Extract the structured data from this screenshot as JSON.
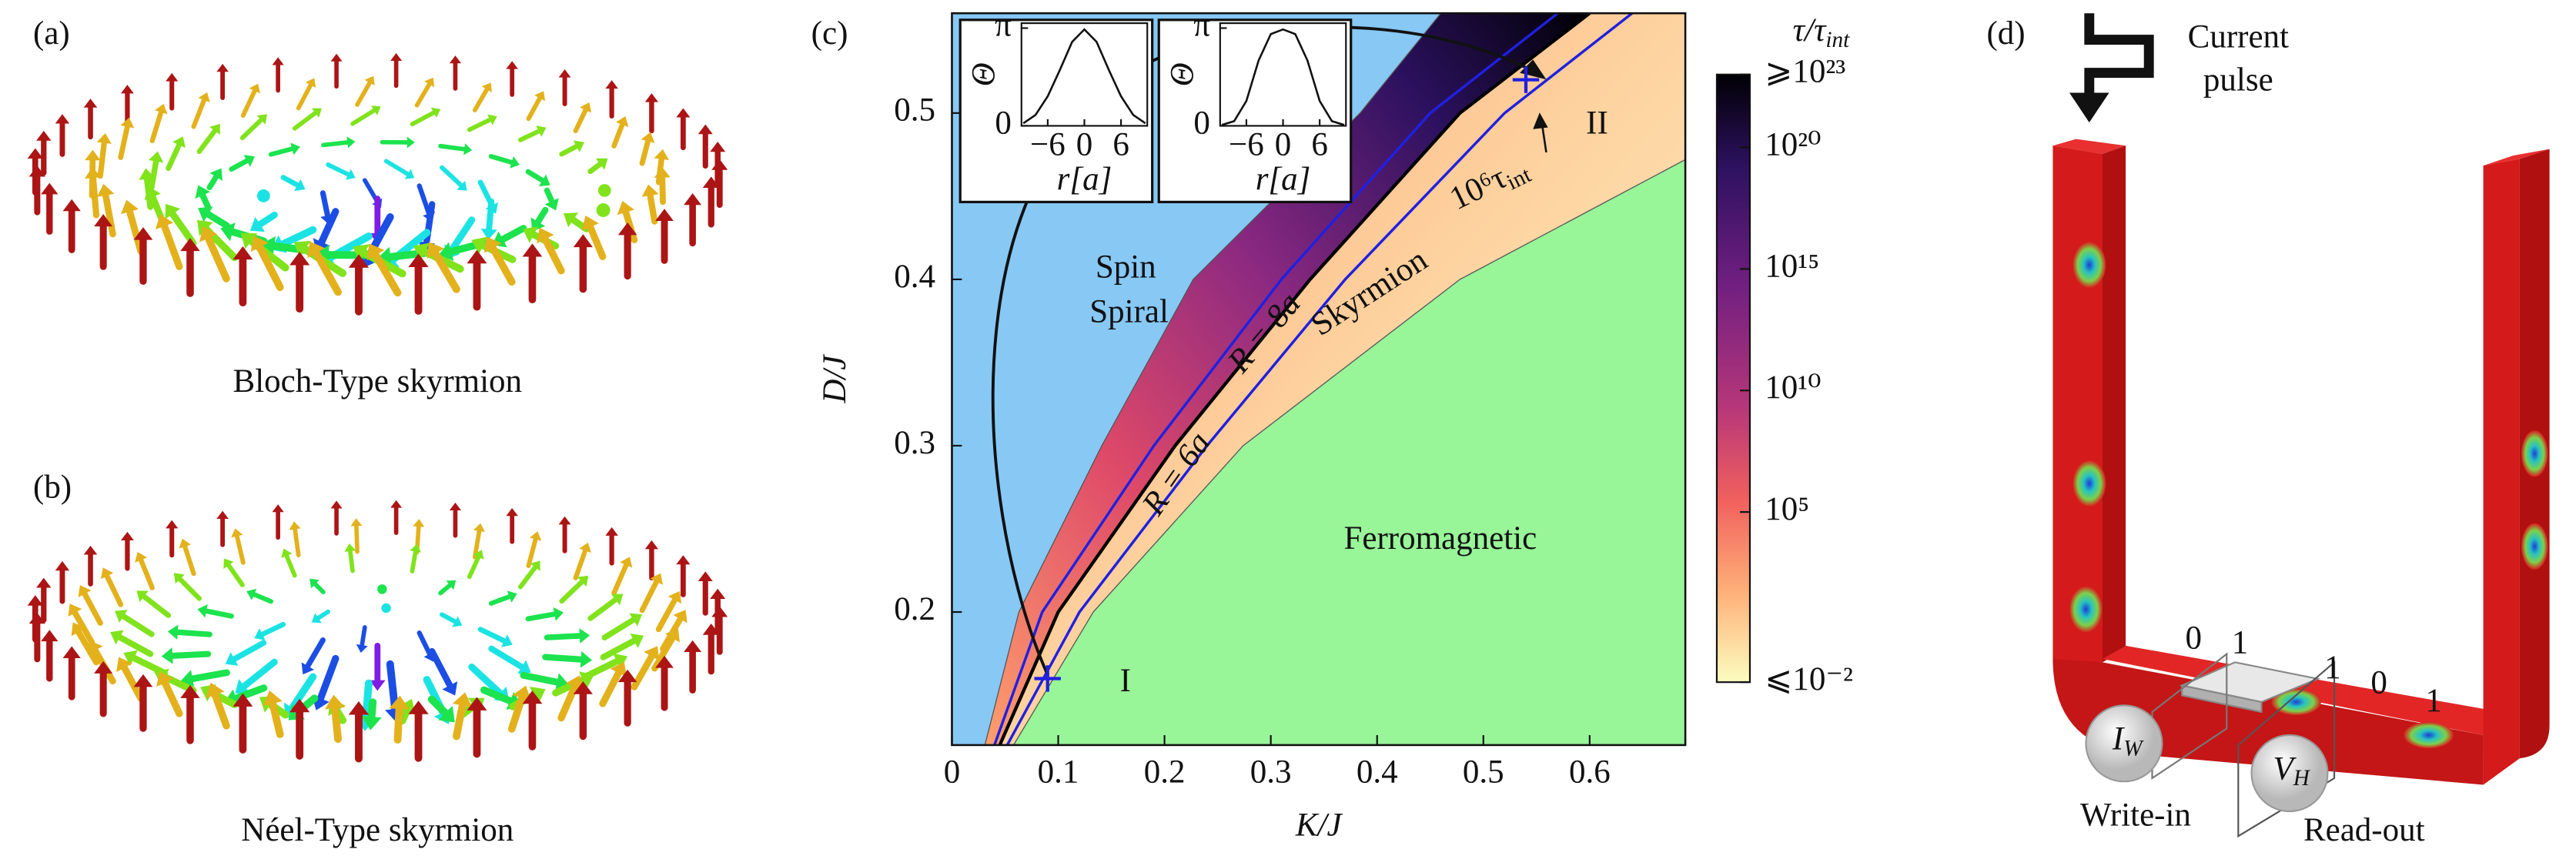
{
  "panels": {
    "a": {
      "label": "(a)",
      "caption": "Bloch-Type skyrmion"
    },
    "b": {
      "label": "(b)",
      "caption": "Néel-Type skyrmion"
    },
    "d": {
      "label": "(d)",
      "pulse_label": [
        "Current",
        "pulse"
      ],
      "write_label": "Write-in",
      "read_label": "Read-out",
      "write_symbol": {
        "main": "I",
        "sub": "W"
      },
      "read_symbol": {
        "main": "V",
        "sub": "H"
      },
      "bit_labels": [
        "0",
        "1",
        "1",
        "0",
        "1"
      ]
    }
  },
  "chart_data": {
    "type": "phase-diagram",
    "panel_label": "(c)",
    "xlabel": "K/J",
    "ylabel": "D/J",
    "xlim": [
      0,
      0.69
    ],
    "ylim": [
      0.12,
      0.56
    ],
    "xticks": [
      0,
      0.1,
      0.2,
      0.3,
      0.4,
      0.5,
      0.6
    ],
    "yticks": [
      0.2,
      0.3,
      0.4,
      0.5
    ],
    "colors": {
      "spiral": "#87c8f5",
      "ferromagnetic": "#98f598"
    },
    "region_labels": [
      "Spin",
      "Spiral",
      "Skyrmion",
      "Ferromagnetic"
    ],
    "boundaries": [
      {
        "x": [
          0.031,
          0.063,
          0.141,
          0.227,
          0.384,
          0.46
        ],
        "y": [
          0.12,
          0.2,
          0.3,
          0.4,
          0.5,
          0.56
        ]
      },
      {
        "x": [
          0.045,
          0.1,
          0.21,
          0.337,
          0.478,
          0.6
        ],
        "y": [
          0.12,
          0.2,
          0.3,
          0.4,
          0.5,
          0.56
        ]
      },
      {
        "x": [
          0.058,
          0.133,
          0.274,
          0.478,
          0.69
        ],
        "y": [
          0.12,
          0.2,
          0.3,
          0.4,
          0.472
        ]
      }
    ],
    "contours": [
      {
        "label": "R = 8a",
        "color": "#2020e0",
        "x": [
          0.04,
          0.085,
          0.19,
          0.31,
          0.45,
          0.57
        ],
        "y": [
          0.12,
          0.2,
          0.3,
          0.4,
          0.5,
          0.56
        ]
      },
      {
        "label": "R = 6a",
        "color": "#2020e0",
        "x": [
          0.052,
          0.12,
          0.24,
          0.37,
          0.52,
          0.64
        ],
        "y": [
          0.12,
          0.2,
          0.3,
          0.4,
          0.5,
          0.56
        ]
      }
    ],
    "lifetime_label": {
      "main": "10⁶τ",
      "sub": "int"
    },
    "markers": [
      {
        "label": "I",
        "x": 0.09,
        "y": 0.16
      },
      {
        "label": "II",
        "x": 0.54,
        "y": 0.52
      }
    ],
    "colorbar": {
      "label": {
        "main": "τ/τ",
        "sub": "int"
      },
      "colormap": "magma",
      "log": true,
      "lim": [
        0.01,
        1e+23
      ],
      "ticks": [
        {
          "value": 1e+23,
          "label": "⩾10²³"
        },
        {
          "value": 1e+20,
          "label": "10²⁰"
        },
        {
          "value": 1000000000000000.0,
          "label": "10¹⁵"
        },
        {
          "value": 10000000000.0,
          "label": "10¹⁰"
        },
        {
          "value": 100000.0,
          "label": "10⁵"
        },
        {
          "value": 0.01,
          "label": "⩽10⁻²"
        }
      ]
    },
    "insets": [
      {
        "ylabel": "Θ",
        "xlabel": "r[a]",
        "xlim": [
          -10.3,
          10.3
        ],
        "ylim": [
          0,
          3.3
        ],
        "xticks": [
          {
            "value": -6,
            "label": "−6"
          },
          0,
          6
        ],
        "yticks": [
          {
            "value": 0,
            "label": "0"
          },
          {
            "value": 3.14159,
            "label": "π"
          }
        ],
        "x": [
          -10,
          -8,
          -6,
          -4,
          -2,
          0,
          2,
          4,
          6,
          8,
          10
        ],
        "y": [
          0.08,
          0.35,
          0.95,
          1.8,
          2.7,
          3.1,
          2.7,
          1.8,
          0.95,
          0.35,
          0.08
        ]
      },
      {
        "ylabel": "Θ",
        "xlabel": "r[a]",
        "xlim": [
          -10.3,
          10.3
        ],
        "ylim": [
          0,
          3.3
        ],
        "xticks": [
          {
            "value": -6,
            "label": "−6"
          },
          0,
          6
        ],
        "yticks": [
          {
            "value": 0,
            "label": "0"
          },
          {
            "value": 3.14159,
            "label": "π"
          }
        ],
        "x": [
          -10,
          -8,
          -6,
          -4,
          -2,
          0,
          2,
          4,
          6,
          8,
          10
        ],
        "y": [
          0.03,
          0.15,
          0.8,
          2.1,
          2.95,
          3.1,
          2.95,
          2.1,
          0.8,
          0.15,
          0.03
        ]
      }
    ]
  }
}
